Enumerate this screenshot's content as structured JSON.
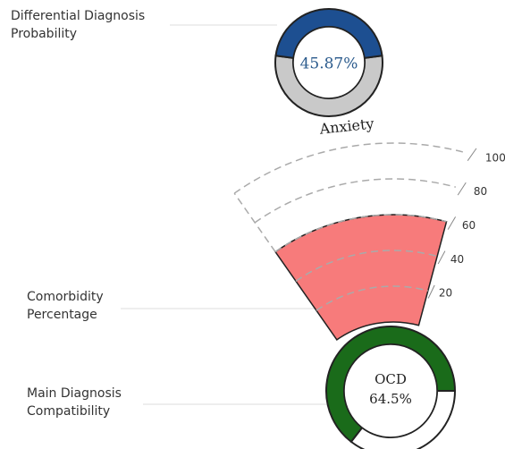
{
  "chart_data": [
    {
      "type": "donut",
      "label": [
        "Differential Diagnosis",
        "Probability"
      ],
      "values": [
        45.87
      ],
      "value_labels": [
        "45.87%"
      ],
      "ylim": [
        0,
        100
      ],
      "color": "#1d4f91",
      "rest_color": "#c9c9c9"
    },
    {
      "type": "radial-sector",
      "category": "Anxiety",
      "label": [
        "Comorbidity",
        "Percentage"
      ],
      "values": [
        60
      ],
      "ylim": [
        0,
        100
      ],
      "yticks": [
        20,
        40,
        60,
        80,
        100
      ],
      "color": "#f77b7b"
    },
    {
      "type": "donut",
      "label": [
        "Main Diagnosis",
        "Compatibility"
      ],
      "category": "OCD",
      "values": [
        64.5
      ],
      "value_labels": [
        "64.5%"
      ],
      "ylim": [
        0,
        100
      ],
      "color": "#1a6b1a",
      "rest_color": "#ffffff"
    }
  ]
}
